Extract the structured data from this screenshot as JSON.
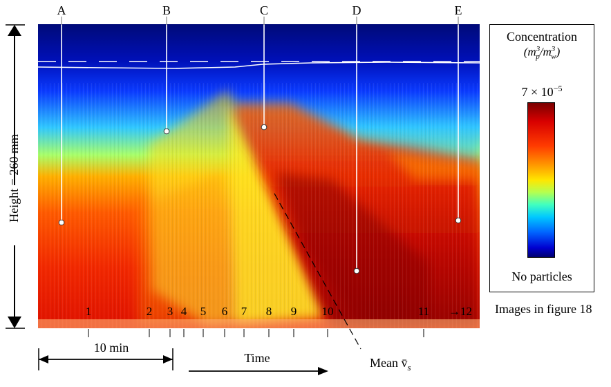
{
  "chart_data": {
    "type": "heatmap",
    "ylabel": "Height = 260 mm",
    "colorbar": {
      "title": "Concentration",
      "unit": "(m_p^3/m_w^3)",
      "unit_main": "(m",
      "unit_sub1": "p",
      "unit_mid": "/m",
      "unit_sub2": "w",
      "unit_end": ")",
      "unit_sup": "3",
      "max_label": "7 × 10",
      "max_exp": "−5",
      "min_label": "No particles",
      "max_value": 7e-05,
      "colormap": "jet"
    },
    "markers": [
      {
        "label": "A"
      },
      {
        "label": "B"
      },
      {
        "label": "C"
      },
      {
        "label": "D"
      },
      {
        "label": "E"
      }
    ],
    "image_ticks": [
      "1",
      "2",
      "3",
      "4",
      "5",
      "6",
      "7",
      "8",
      "9",
      "10",
      "11",
      "→12"
    ],
    "image_ticks_caption": "Images in figure 18",
    "scale_bar_label": "10 min",
    "time_label": "Time",
    "mean_velocity_label": "Mean v̄",
    "mean_velocity_sub": "s"
  },
  "colors": {
    "deep_blue": "#000080",
    "blue": "#0010d8",
    "cyan": "#40e0ff",
    "yellow": "#ffe000",
    "orange": "#ff6400",
    "red": "#e00000",
    "dark_red": "#700000"
  }
}
